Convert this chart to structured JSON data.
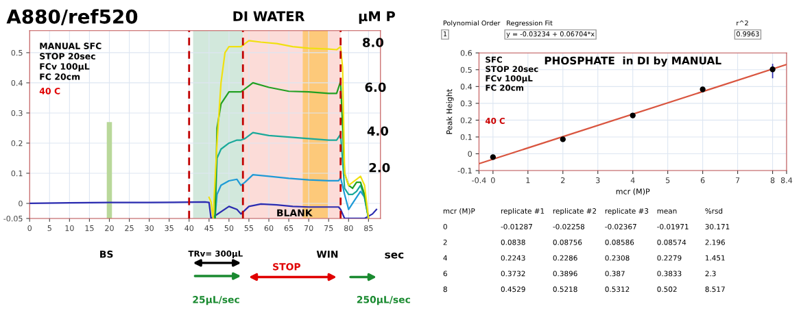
{
  "chart_data": [
    {
      "type": "line",
      "title": "A880/ref520",
      "xlim": [
        0,
        88
      ],
      "xticks": [
        0,
        5,
        10,
        15,
        20,
        25,
        30,
        35,
        40,
        45,
        50,
        55,
        60,
        65,
        70,
        75,
        80,
        85
      ],
      "ylim": [
        -0.05,
        0.573
      ],
      "yticks": [
        {
          "value": -0.05,
          "label": "-0.05"
        },
        0,
        0.1,
        0.2,
        0.3,
        0.4,
        0.5
      ],
      "grid": true,
      "series": [
        {
          "type": "bar",
          "color": "#b9d89a",
          "x": [
            20
          ],
          "base": [
            -0.05
          ],
          "values": [
            0.32
          ]
        },
        {
          "color": "#2b2bb0",
          "x": [
            0,
            10,
            20,
            30,
            40,
            44,
            45,
            45.5,
            50,
            52,
            53,
            55,
            58,
            62,
            66,
            70,
            75,
            77.5,
            78,
            79,
            84,
            86,
            87
          ],
          "values": [
            0,
            0.002,
            0.003,
            0.003,
            0.004,
            0.005,
            0.003,
            -0.05,
            -0.01,
            -0.02,
            -0.035,
            -0.01,
            -0.002,
            -0.005,
            -0.01,
            -0.012,
            -0.012,
            -0.012,
            -0.02,
            -0.05,
            -0.05,
            -0.035,
            -0.02
          ]
        },
        {
          "color": "#1e9ad6",
          "x": [
            46.5,
            47,
            48,
            50,
            52,
            53,
            54,
            56,
            60,
            65,
            70,
            75,
            77.5,
            78,
            79,
            80,
            81,
            82,
            83,
            84,
            85
          ],
          "values": [
            -0.05,
            0.03,
            0.06,
            0.075,
            0.08,
            0.06,
            0.07,
            0.095,
            0.09,
            0.083,
            0.078,
            0.075,
            0.075,
            0.085,
            0.03,
            -0.02,
            0,
            0.02,
            0.04,
            0.02,
            -0.05
          ]
        },
        {
          "color": "#1aa99a",
          "x": [
            46.5,
            47,
            48,
            50,
            52,
            53,
            54,
            56,
            60,
            65,
            70,
            75,
            77,
            78,
            79,
            80,
            81,
            82,
            83,
            84,
            85
          ],
          "values": [
            -0.05,
            0.15,
            0.18,
            0.2,
            0.21,
            0.21,
            0.215,
            0.235,
            0.225,
            0.22,
            0.215,
            0.21,
            0.21,
            0.23,
            0.05,
            0.03,
            0.03,
            0.04,
            0.06,
            0.02,
            -0.05
          ]
        },
        {
          "color": "#22a022",
          "x": [
            46.5,
            47,
            48,
            50,
            53,
            55,
            56,
            60,
            65,
            70,
            75,
            77,
            78,
            79,
            80,
            81,
            82,
            83,
            84,
            85
          ],
          "values": [
            -0.05,
            0.25,
            0.33,
            0.37,
            0.37,
            0.39,
            0.4,
            0.385,
            0.372,
            0.37,
            0.365,
            0.365,
            0.405,
            0.1,
            0.06,
            0.05,
            0.07,
            0.07,
            0.03,
            -0.05
          ]
        },
        {
          "color": "#f0e010",
          "x": [
            45,
            45.5,
            46,
            47,
            48,
            49,
            50,
            53,
            55,
            58,
            62,
            66,
            70,
            75,
            77,
            78,
            78.5,
            79,
            80,
            82,
            83,
            84,
            85
          ],
          "values": [
            0.02,
            0.005,
            -0.05,
            0.2,
            0.4,
            0.5,
            0.52,
            0.52,
            0.54,
            0.535,
            0.53,
            0.52,
            0.515,
            0.512,
            0.51,
            0.52,
            0.45,
            0.1,
            0.06,
            0.08,
            0.09,
            0.06,
            -0.05
          ]
        }
      ],
      "bands": [
        {
          "axis": "x",
          "from": 41,
          "to": 53.5,
          "color": "#d2e8dc"
        },
        {
          "axis": "x",
          "from": 53.5,
          "to": 78,
          "color": "#fcdcd8"
        },
        {
          "axis": "x",
          "from": 68.5,
          "to": 74.8,
          "color": "#fdc97a"
        }
      ],
      "ref_lines": [
        {
          "axis": "x",
          "value": 40,
          "color": "#c00000",
          "line_style": "dashed"
        },
        {
          "axis": "x",
          "value": 53.5,
          "color": "#c00000",
          "line_style": "dashed"
        },
        {
          "axis": "x",
          "value": 78,
          "color": "#c00000",
          "line_style": "dashed"
        }
      ],
      "annotations": [
        "DI WATER",
        "μM P",
        "MANUAL SFC\nSTOP 20sec\nFCv 100μL\nFC 20cm",
        "40 C",
        "BS",
        "WIN",
        "sec",
        "TRv= 300μL",
        "STOP",
        "25μL/sec",
        "250μL/sec",
        "8.0",
        "6.0",
        "4.0",
        "2.0",
        "BLANK"
      ]
    },
    {
      "type": "scatter",
      "title": "PHOSPHATE  in DI by MANUAL",
      "xlabel": "mcr (M)P",
      "ylabel": "Peak Height",
      "xlim": [
        -0.4,
        8.4
      ],
      "xticks": [
        -0.4,
        0,
        1,
        2,
        3,
        4,
        5,
        6,
        7,
        8,
        8.4
      ],
      "ylim": [
        -0.1,
        0.6
      ],
      "yticks": [
        -0.1,
        0,
        0.1,
        0.2,
        0.3,
        0.4,
        0.5,
        0.6
      ],
      "grid": true,
      "series": [
        {
          "color": "#000000",
          "marker": "circle",
          "x": [
            0,
            2,
            4,
            6,
            8
          ],
          "values": [
            -0.02,
            0.086,
            0.228,
            0.383,
            0.502
          ],
          "errors": [
            null,
            null,
            null,
            null,
            [
              0.453,
              0.531
            ]
          ]
        },
        {
          "type": "line",
          "color": "#d9553f",
          "x": [
            -0.4,
            8.4
          ],
          "values": [
            -0.059,
            0.531
          ]
        }
      ],
      "annotations": [
        "SFC\nSTOP 20sec\nFCv 100μL\nFC 20cm",
        "40 C",
        "Polynomial Order",
        "1",
        "Regression Fit",
        "y = -0.03234 + 0.06704*x",
        "r^2",
        "0.9963",
        "mcr (M)P\treplicate #1\treplicate #2\treplicate #3\tmean\t%rsd",
        "0\t-0.01287\t-0.02258\t-0.02367\t-0.01971\t30.171",
        "2\t0.0838\t0.08756\t0.08586\t0.08574\t2.196",
        "4\t0.2243\t0.2286\t0.2308\t0.2279\t1.451",
        "6\t0.3732\t0.3896\t0.387\t0.3833\t2.3",
        "8\t0.4529\t0.5218\t0.5312\t0.502\t8.517"
      ]
    }
  ]
}
